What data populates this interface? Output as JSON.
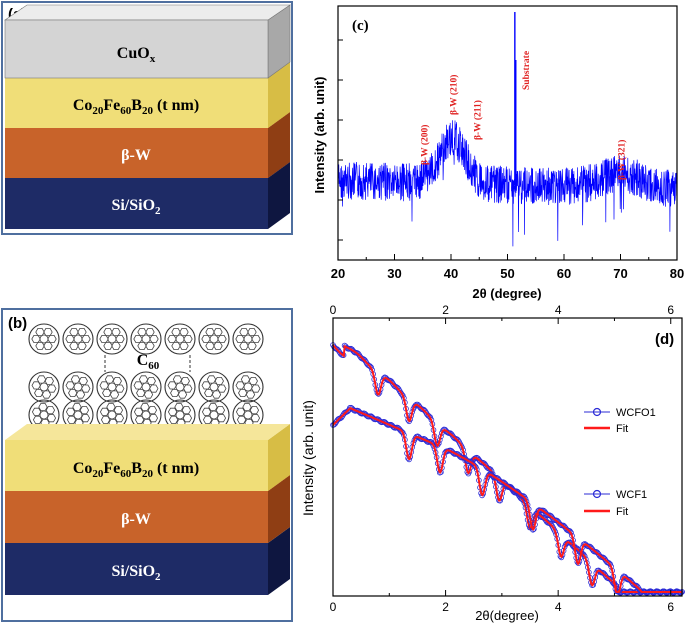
{
  "colors": {
    "panel_border": "#4f6f9f",
    "cuox_face": "#d4d4d4",
    "cofeb_face": "#f0de78",
    "w_face": "#c8632a",
    "sio2_face": "#1e2b66",
    "xrd_line": "#0000ff",
    "xrr_marker": "#2b2bd6",
    "fit_line": "#ff1a1a",
    "annotation": "#e02020"
  },
  "panel_a": {
    "label": "(a)",
    "layers": [
      {
        "text": "CuO",
        "sub": "x",
        "rest": ""
      },
      {
        "text": "Co",
        "sub1": "20",
        "mid1": "Fe",
        "sub2": "60",
        "mid2": "B",
        "sub3": "20",
        "tail": " (t nm)"
      },
      {
        "text": "β-W"
      },
      {
        "text": "Si/SiO",
        "sub": "2"
      }
    ]
  },
  "panel_b": {
    "label": "(b)",
    "molecule_label": "C",
    "molecule_sub": "60",
    "layers": [
      {
        "text": "Co",
        "sub1": "20",
        "mid1": "Fe",
        "sub2": "60",
        "mid2": "B",
        "sub3": "20",
        "tail": " (t nm)"
      },
      {
        "text": "β-W"
      },
      {
        "text": "Si/SiO",
        "sub": "2"
      }
    ]
  },
  "chart_data": [
    {
      "id": "c",
      "type": "line",
      "label": "(c)",
      "xlabel": "2θ (degree)",
      "ylabel": "Intensity (arb. unit)",
      "xlim": [
        20,
        80
      ],
      "xticks": [
        "20",
        "30",
        "40",
        "50",
        "60",
        "70",
        "80"
      ],
      "series": [
        {
          "name": "XRD",
          "peaks": [
            {
              "x": 35.5,
              "height": 0.2
            },
            {
              "x": 40.3,
              "height": 0.55
            },
            {
              "x": 43.8,
              "height": 0.1
            },
            {
              "x": 51.3,
              "height": 1.0
            },
            {
              "x": 70.0,
              "height": 0.12
            }
          ]
        }
      ],
      "annotations": [
        {
          "text": "β-W (200)",
          "x": 35.5
        },
        {
          "text": "β-W (210)",
          "x": 40.3
        },
        {
          "text": "β-W (211)",
          "x": 43.8
        },
        {
          "text": "Substrate",
          "x": 51.3
        },
        {
          "text": "β-W (321)",
          "x": 70.0
        }
      ]
    },
    {
      "id": "d",
      "type": "line",
      "label": "(d)",
      "xlabel": "2θ(degree)",
      "ylabel": "Intensity (arb. unit)",
      "xlim": [
        0,
        6.2
      ],
      "xticks": [
        "0",
        "2",
        "4",
        "6"
      ],
      "series": [
        {
          "name": "WCFO1",
          "style": "markers",
          "minima": [
            0.8,
            1.35,
            1.85,
            2.4,
            2.95,
            3.5,
            4.05,
            4.6,
            5.15,
            5.7
          ]
        },
        {
          "name": "Fit",
          "style": "line",
          "of": "WCFO1"
        },
        {
          "name": "WCF1",
          "style": "markers",
          "minima": [
            1.35,
            1.9,
            2.65,
            3.55,
            4.35,
            5.05,
            5.6
          ]
        },
        {
          "name": "Fit",
          "style": "line",
          "of": "WCF1"
        }
      ],
      "legend": [
        {
          "name": "WCFO1",
          "kind": "marker"
        },
        {
          "name": "Fit",
          "kind": "line"
        },
        {
          "name": "WCF1",
          "kind": "marker"
        },
        {
          "name": "Fit",
          "kind": "line"
        }
      ]
    }
  ]
}
